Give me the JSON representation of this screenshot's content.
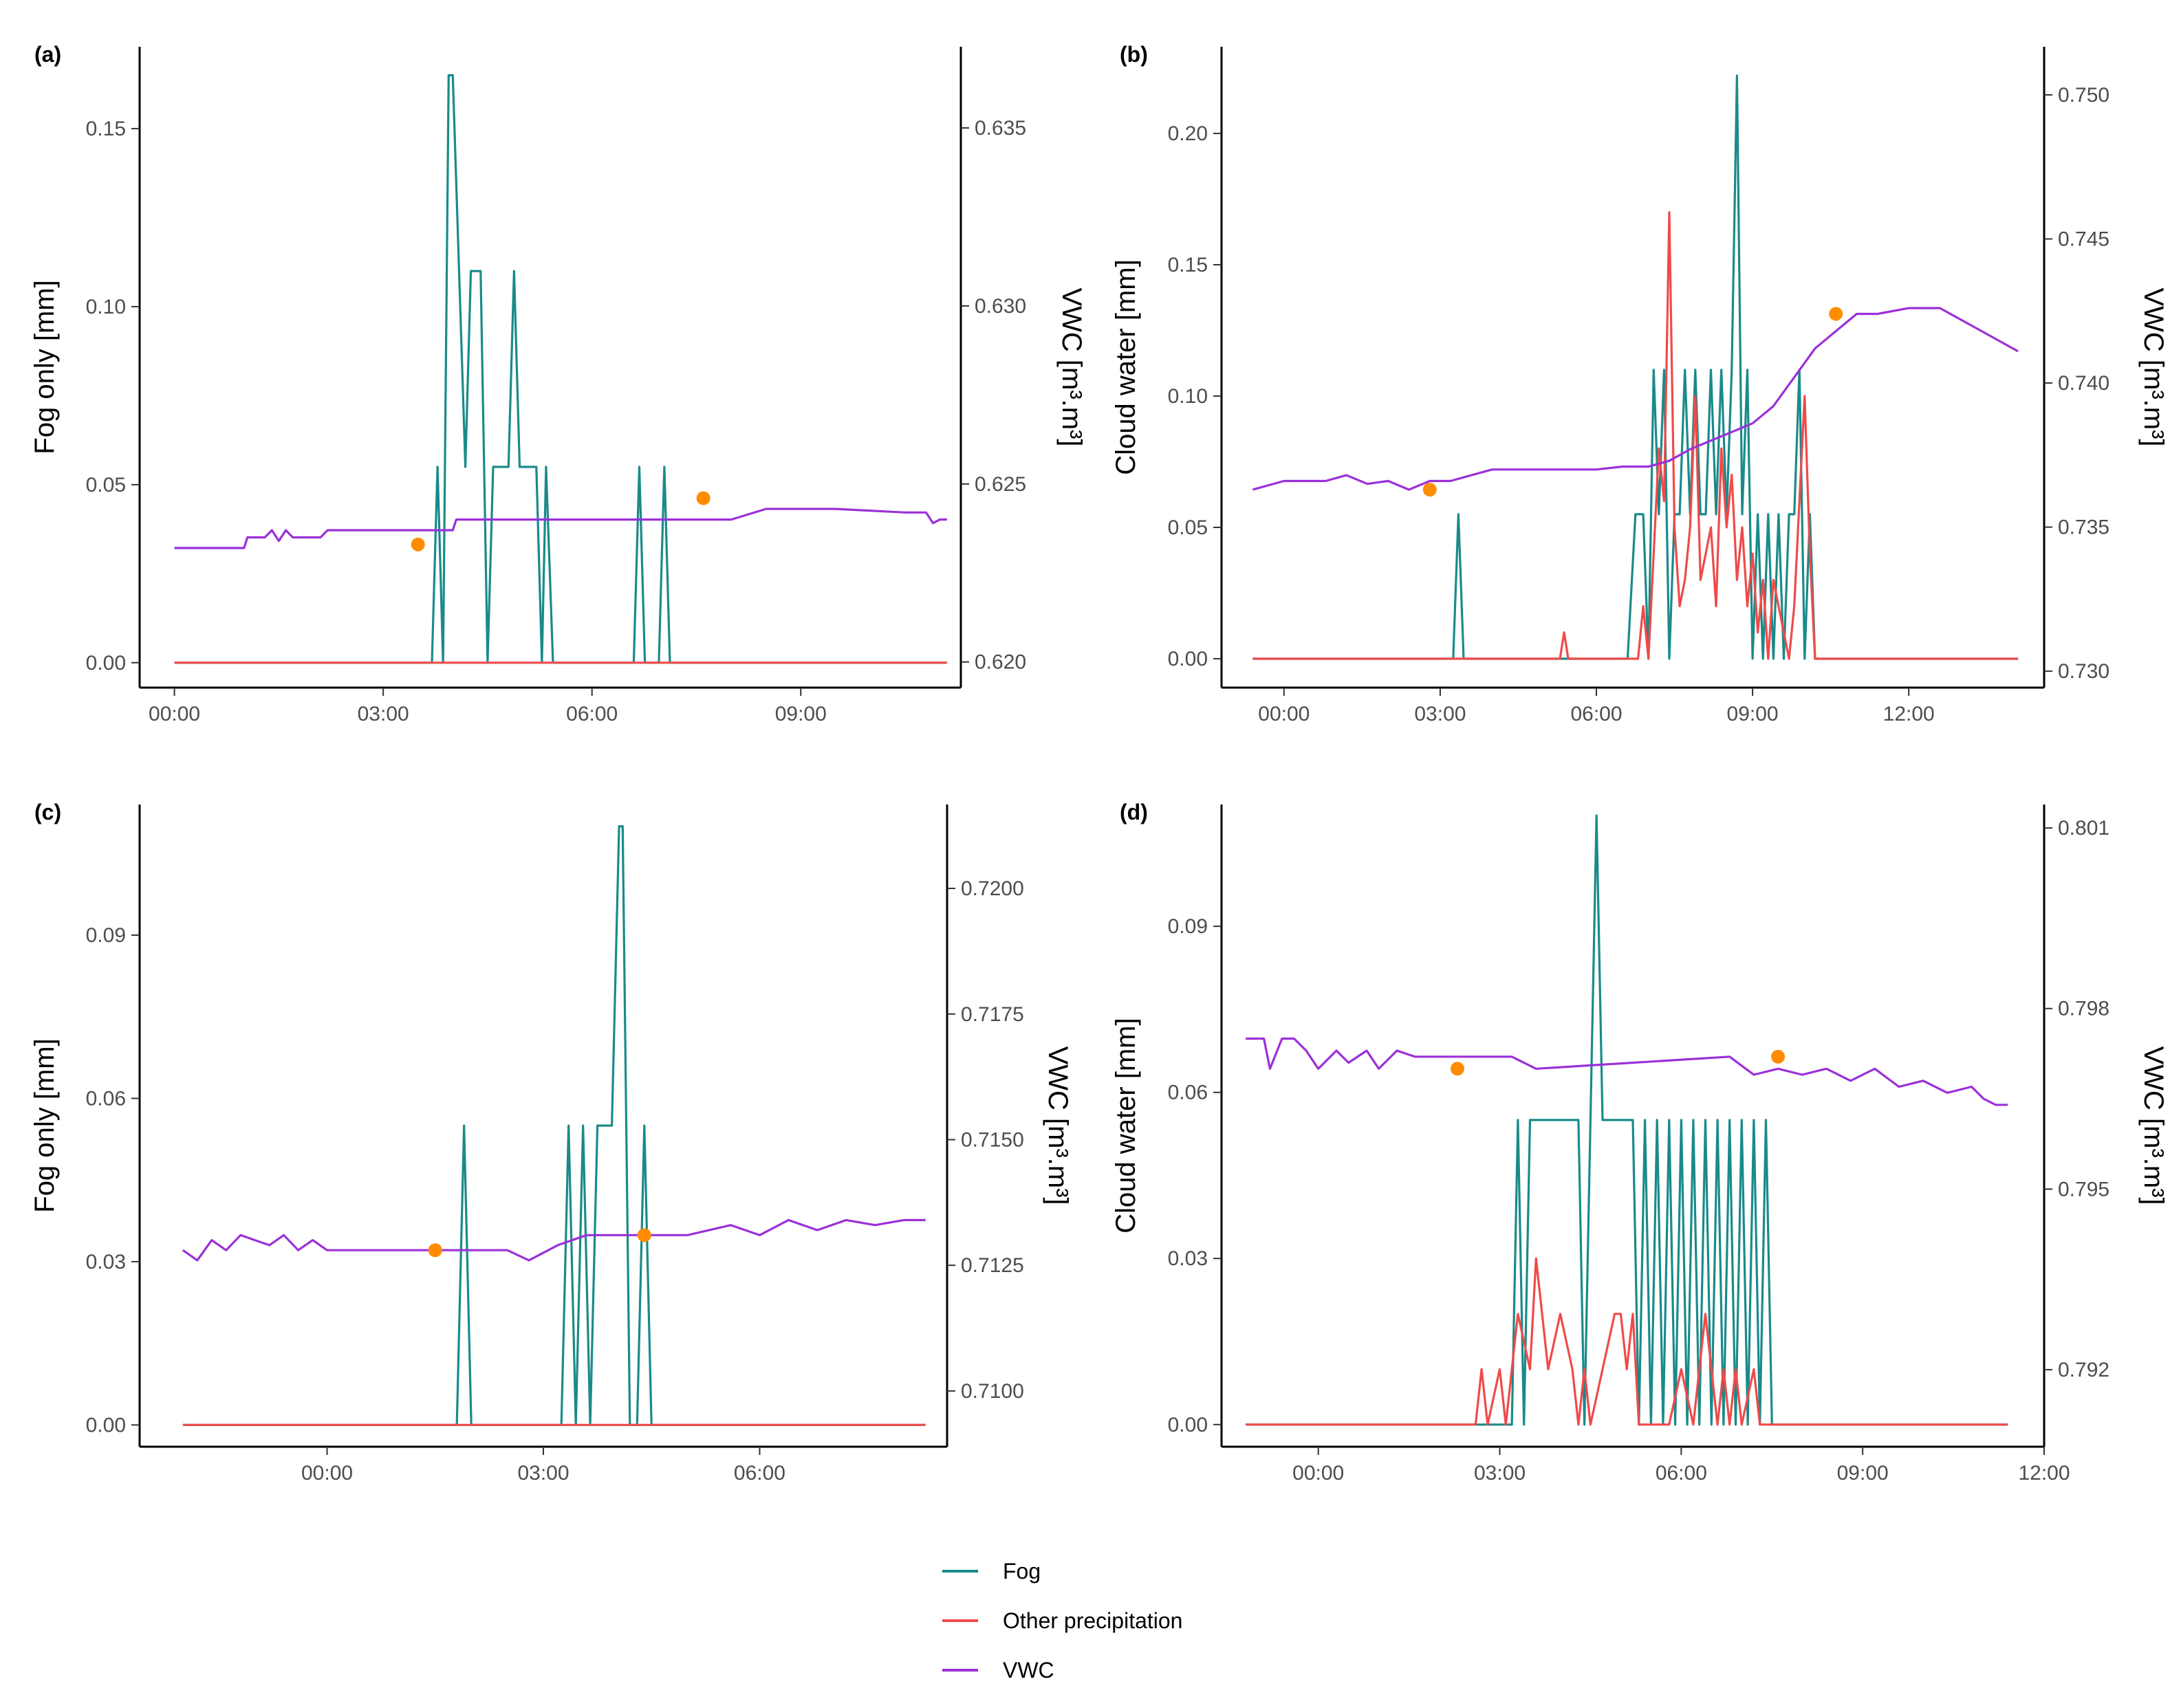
{
  "legend": {
    "items": [
      {
        "key": "fog",
        "label": "Fog",
        "color": "#1a8a8a"
      },
      {
        "key": "other",
        "label": "Other precipitation",
        "color": "#f04a4a"
      },
      {
        "key": "vwc",
        "label": "VWC",
        "color": "#9b30d9"
      }
    ]
  },
  "marker_color": "#ff8c00",
  "chart_data": [
    {
      "panel": "(a)",
      "type": "line",
      "ylabel": "Fog only [mm]",
      "y2label": "VWC [m³.m³]",
      "xlim": [
        -0.5,
        11.3
      ],
      "ylim": [
        -0.007,
        0.173
      ],
      "y2lim": [
        0.61928,
        0.63728
      ],
      "xticks": [
        0,
        3,
        6,
        9
      ],
      "xtick_labels": [
        "00:00",
        "03:00",
        "06:00",
        "09:00"
      ],
      "yticks": [
        0,
        0.05,
        0.1,
        0.15
      ],
      "ytick_labels": [
        "0.00",
        "0.05",
        "0.10",
        "0.15"
      ],
      "y2ticks": [
        0.62,
        0.625,
        0.63,
        0.635
      ],
      "y2tick_labels": [
        "0.620",
        "0.625",
        "0.630",
        "0.635"
      ],
      "series": [
        {
          "name": "Fog",
          "axis": "left",
          "x": [
            0,
            3.7,
            3.78,
            3.86,
            3.94,
            4.0,
            4.18,
            4.26,
            4.4,
            4.5,
            4.58,
            4.8,
            4.88,
            4.96,
            5.2,
            5.28,
            5.34,
            5.44,
            6.6,
            6.68,
            6.76,
            6.96,
            7.04,
            7.12,
            11.1
          ],
          "y": [
            0,
            0,
            0.055,
            0,
            0.165,
            0.165,
            0.055,
            0.11,
            0.11,
            0,
            0.055,
            0.055,
            0.11,
            0.055,
            0.055,
            0,
            0.055,
            0,
            0,
            0.055,
            0,
            0,
            0.055,
            0,
            0
          ]
        },
        {
          "name": "Other precipitation",
          "axis": "left",
          "x": [
            0,
            11.1
          ],
          "y": [
            0,
            0
          ]
        },
        {
          "name": "VWC",
          "axis": "right",
          "x": [
            0,
            1.0,
            1.05,
            1.3,
            1.4,
            1.5,
            1.6,
            1.7,
            2.1,
            2.2,
            4.0,
            4.05,
            5.0,
            8.0,
            8.5,
            9.5,
            10.5,
            10.8,
            10.9,
            11.0,
            11.1
          ],
          "y": [
            0.6232,
            0.6232,
            0.6235,
            0.6235,
            0.6237,
            0.6234,
            0.6237,
            0.6235,
            0.6235,
            0.6237,
            0.6237,
            0.624,
            0.624,
            0.624,
            0.6243,
            0.6243,
            0.6242,
            0.6242,
            0.6239,
            0.624,
            0.624
          ]
        }
      ],
      "markers": [
        {
          "x": 3.5,
          "y2": 0.6233
        },
        {
          "x": 7.6,
          "y2": 0.6246
        }
      ]
    },
    {
      "panel": "(b)",
      "type": "line",
      "ylabel": "Cloud water [mm]",
      "y2label": "VWC [m³.m³]",
      "xlim": [
        -1.2,
        14.6
      ],
      "ylim": [
        -0.011,
        0.233
      ],
      "y2lim": [
        0.72943,
        0.75167
      ],
      "xticks": [
        0,
        3,
        6,
        9,
        12
      ],
      "xtick_labels": [
        "00:00",
        "03:00",
        "06:00",
        "09:00",
        "12:00"
      ],
      "yticks": [
        0,
        0.05,
        0.1,
        0.15,
        0.2
      ],
      "ytick_labels": [
        "0.00",
        "0.05",
        "0.10",
        "0.15",
        "0.20"
      ],
      "y2ticks": [
        0.73,
        0.735,
        0.74,
        0.745,
        0.75
      ],
      "y2tick_labels": [
        "0.730",
        "0.735",
        "0.740",
        "0.745",
        "0.750"
      ],
      "series": [
        {
          "name": "Fog",
          "axis": "left",
          "x": [
            -0.6,
            3.25,
            3.35,
            3.45,
            6.6,
            6.75,
            6.9,
            7.0,
            7.1,
            7.2,
            7.3,
            7.4,
            7.5,
            7.6,
            7.7,
            7.8,
            7.9,
            8.0,
            8.1,
            8.2,
            8.3,
            8.4,
            8.5,
            8.6,
            8.7,
            8.8,
            8.9,
            9.0,
            9.1,
            9.2,
            9.3,
            9.4,
            9.5,
            9.6,
            9.7,
            9.8,
            9.9,
            10.0,
            10.1,
            10.2,
            14.1
          ],
          "y": [
            0,
            0,
            0.055,
            0,
            0,
            0.055,
            0.055,
            0,
            0.11,
            0.055,
            0.11,
            0,
            0.055,
            0.055,
            0.11,
            0.055,
            0.11,
            0.055,
            0.055,
            0.11,
            0.055,
            0.11,
            0.055,
            0.11,
            0.222,
            0.055,
            0.11,
            0,
            0.055,
            0,
            0.055,
            0,
            0.055,
            0,
            0.055,
            0.055,
            0.11,
            0,
            0.055,
            0,
            0
          ]
        },
        {
          "name": "Other precipitation",
          "axis": "left",
          "x": [
            -0.6,
            5.3,
            5.38,
            5.46,
            6.8,
            6.9,
            7.0,
            7.1,
            7.2,
            7.3,
            7.4,
            7.5,
            7.6,
            7.7,
            7.8,
            7.9,
            8.0,
            8.1,
            8.2,
            8.3,
            8.4,
            8.5,
            8.6,
            8.7,
            8.8,
            8.9,
            9.0,
            9.1,
            9.2,
            9.3,
            9.4,
            9.5,
            9.6,
            9.7,
            9.8,
            9.9,
            10.0,
            10.1,
            10.2,
            14.1
          ],
          "y": [
            0,
            0,
            0.01,
            0,
            0,
            0.02,
            0,
            0.04,
            0.08,
            0.06,
            0.17,
            0.05,
            0.02,
            0.03,
            0.05,
            0.1,
            0.03,
            0.04,
            0.05,
            0.02,
            0.08,
            0.05,
            0.07,
            0.03,
            0.05,
            0.02,
            0.04,
            0.01,
            0.03,
            0,
            0.03,
            0.02,
            0.01,
            0,
            0.02,
            0.06,
            0.1,
            0.04,
            0,
            0
          ]
        },
        {
          "name": "VWC",
          "axis": "right",
          "x": [
            -0.6,
            0,
            0.8,
            1.2,
            1.6,
            2.0,
            2.4,
            2.8,
            3.2,
            3.6,
            4.0,
            6.0,
            6.5,
            7.0,
            7.4,
            7.8,
            8.2,
            8.6,
            9.0,
            9.4,
            9.8,
            10.2,
            10.6,
            11.0,
            11.4,
            12.0,
            12.6,
            13.0,
            13.4,
            13.8,
            14.1
          ],
          "y": [
            0.7363,
            0.7366,
            0.7366,
            0.7368,
            0.7365,
            0.7366,
            0.7363,
            0.7366,
            0.7366,
            0.7368,
            0.737,
            0.737,
            0.7371,
            0.7371,
            0.7373,
            0.7377,
            0.738,
            0.7383,
            0.7386,
            0.7392,
            0.7402,
            0.7412,
            0.7418,
            0.7424,
            0.7424,
            0.7426,
            0.7426,
            0.7422,
            0.7418,
            0.7414,
            0.7411
          ]
        }
      ],
      "markers": [
        {
          "x": 2.8,
          "y2": 0.7363
        },
        {
          "x": 10.6,
          "y2": 0.7424
        }
      ]
    },
    {
      "panel": "(c)",
      "type": "line",
      "ylabel": "Fog only [mm]",
      "y2label": "VWC [m³.m³]",
      "xlim": [
        -2.6,
        8.6
      ],
      "ylim": [
        -0.004,
        0.114
      ],
      "y2lim": [
        0.70889,
        0.72167
      ],
      "xticks": [
        0,
        3,
        6
      ],
      "xtick_labels": [
        "00:00",
        "03:00",
        "06:00"
      ],
      "yticks": [
        0,
        0.03,
        0.06,
        0.09
      ],
      "ytick_labels": [
        "0.00",
        "0.03",
        "0.06",
        "0.09"
      ],
      "y2ticks": [
        0.71,
        0.7125,
        0.715,
        0.7175,
        0.72
      ],
      "y2tick_labels": [
        "0.7100",
        "0.7125",
        "0.7150",
        "0.7175",
        "0.7200"
      ],
      "series": [
        {
          "name": "Fog",
          "axis": "left",
          "x": [
            -2.0,
            1.8,
            1.9,
            2.0,
            3.25,
            3.35,
            3.45,
            3.55,
            3.65,
            3.75,
            3.85,
            3.95,
            4.05,
            4.1,
            4.2,
            4.3,
            4.4,
            4.5,
            8.3
          ],
          "y": [
            0,
            0,
            0.055,
            0,
            0,
            0.055,
            0,
            0.055,
            0,
            0.055,
            0.055,
            0.055,
            0.11,
            0.11,
            0,
            0,
            0.055,
            0,
            0
          ]
        },
        {
          "name": "Other precipitation",
          "axis": "left",
          "x": [
            -2.0,
            8.3
          ],
          "y": [
            0,
            0
          ]
        },
        {
          "name": "VWC",
          "axis": "right",
          "x": [
            -2.0,
            -1.8,
            -1.6,
            -1.4,
            -1.2,
            -1.0,
            -0.8,
            -0.6,
            -0.4,
            -0.2,
            0,
            2.5,
            2.8,
            3.2,
            3.6,
            4.0,
            5.0,
            5.6,
            6.0,
            6.4,
            6.8,
            7.2,
            7.6,
            8.0,
            8.3
          ],
          "y": [
            0.7128,
            0.7126,
            0.713,
            0.7128,
            0.7131,
            0.713,
            0.7129,
            0.7131,
            0.7128,
            0.713,
            0.7128,
            0.7128,
            0.7126,
            0.7129,
            0.7131,
            0.7131,
            0.7131,
            0.7133,
            0.7131,
            0.7134,
            0.7132,
            0.7134,
            0.7133,
            0.7134,
            0.7134
          ]
        }
      ],
      "markers": [
        {
          "x": 1.5,
          "y2": 0.7128
        },
        {
          "x": 4.4,
          "y2": 0.7131
        }
      ]
    },
    {
      "panel": "(d)",
      "type": "line",
      "ylabel": "Cloud water [mm]",
      "y2label": "VWC [m³.m³]",
      "xlim": [
        -1.6,
        12.0
      ],
      "ylim": [
        -0.004,
        0.112
      ],
      "y2lim": [
        0.79072,
        0.80139
      ],
      "xticks": [
        0,
        3,
        6,
        9,
        12
      ],
      "xtick_labels": [
        "00:00",
        "03:00",
        "06:00",
        "09:00",
        "12:00"
      ],
      "yticks": [
        0,
        0.03,
        0.06,
        0.09
      ],
      "ytick_labels": [
        "0.00",
        "0.03",
        "0.06",
        "0.09"
      ],
      "y2ticks": [
        0.792,
        0.795,
        0.798,
        0.801
      ],
      "y2tick_labels": [
        "0.792",
        "0.795",
        "0.798",
        "0.801"
      ],
      "series": [
        {
          "name": "Fog",
          "axis": "left",
          "x": [
            -1.2,
            3.2,
            3.3,
            3.4,
            3.5,
            3.6,
            4.3,
            4.4,
            4.5,
            4.6,
            4.7,
            4.8,
            4.9,
            5.2,
            5.3,
            5.4,
            5.5,
            5.6,
            5.7,
            5.8,
            5.9,
            6.0,
            6.1,
            6.2,
            6.3,
            6.4,
            6.5,
            6.6,
            6.7,
            6.8,
            6.9,
            7.0,
            7.1,
            7.2,
            7.3,
            7.4,
            7.5,
            7.6,
            11.4
          ],
          "y": [
            0,
            0,
            0.055,
            0,
            0.055,
            0.055,
            0.055,
            0,
            0.055,
            0.11,
            0.055,
            0.055,
            0.055,
            0.055,
            0,
            0.055,
            0,
            0.055,
            0,
            0.055,
            0,
            0.055,
            0,
            0.055,
            0,
            0.055,
            0,
            0.055,
            0,
            0.055,
            0,
            0.055,
            0,
            0.055,
            0,
            0.055,
            0,
            0,
            0
          ]
        },
        {
          "name": "Other precipitation",
          "axis": "left",
          "x": [
            -1.2,
            2.6,
            2.7,
            2.8,
            3.0,
            3.1,
            3.3,
            3.5,
            3.6,
            3.7,
            3.8,
            4.0,
            4.2,
            4.3,
            4.4,
            4.5,
            4.7,
            4.9,
            5.0,
            5.1,
            5.2,
            5.3,
            5.4,
            5.6,
            5.8,
            6.0,
            6.2,
            6.4,
            6.5,
            6.6,
            6.7,
            6.8,
            6.9,
            7.0,
            7.2,
            7.3,
            7.5,
            11.4
          ],
          "y": [
            0,
            0,
            0.01,
            0,
            0.01,
            0,
            0.02,
            0.01,
            0.03,
            0.02,
            0.01,
            0.02,
            0.01,
            0,
            0.01,
            0,
            0.01,
            0.02,
            0.02,
            0.01,
            0.02,
            0,
            0,
            0,
            0,
            0.01,
            0,
            0.02,
            0.01,
            0,
            0.01,
            0,
            0.01,
            0,
            0.01,
            0,
            0,
            0
          ]
        },
        {
          "name": "VWC",
          "axis": "right",
          "x": [
            -1.2,
            -0.9,
            -0.8,
            -0.6,
            -0.4,
            -0.2,
            0,
            0.3,
            0.5,
            0.8,
            1.0,
            1.3,
            1.6,
            3.2,
            3.6,
            6.8,
            7.2,
            7.6,
            8.0,
            8.4,
            8.8,
            9.2,
            9.6,
            10.0,
            10.4,
            10.8,
            11.0,
            11.2,
            11.4
          ],
          "y": [
            0.7975,
            0.7975,
            0.797,
            0.7975,
            0.7975,
            0.7973,
            0.797,
            0.7973,
            0.7971,
            0.7973,
            0.797,
            0.7973,
            0.7972,
            0.7972,
            0.797,
            0.7972,
            0.7969,
            0.797,
            0.7969,
            0.797,
            0.7968,
            0.797,
            0.7967,
            0.7968,
            0.7966,
            0.7967,
            0.7965,
            0.7964,
            0.7964
          ]
        }
      ],
      "markers": [
        {
          "x": 2.3,
          "y2": 0.797
        },
        {
          "x": 7.6,
          "y2": 0.7972
        }
      ]
    }
  ]
}
